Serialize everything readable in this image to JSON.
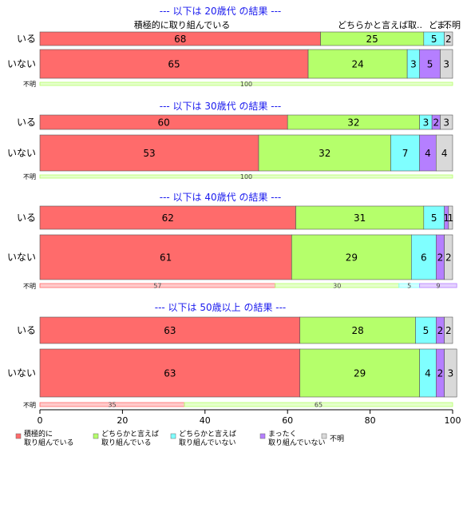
{
  "chart_data": {
    "type": "bar",
    "orientation": "horizontal",
    "stacked": true,
    "xlim": [
      0,
      100
    ],
    "x_ticks": [
      "0",
      "20",
      "40",
      "60",
      "80",
      "100"
    ],
    "legend_position": "bottom",
    "series_legend": [
      {
        "key": "active",
        "label_lines": [
          "積極的に",
          "取り組んでいる"
        ],
        "color": "#FF6B6B"
      },
      {
        "key": "somewhat_active",
        "label_lines": [
          "どちらかと言えば",
          "取り組んでいる"
        ],
        "color": "#B5FF6B"
      },
      {
        "key": "somewhat_not",
        "label_lines": [
          "どちらかと言えば",
          "取り組んでいない"
        ],
        "color": "#7FFFFF"
      },
      {
        "key": "not_at_all",
        "label_lines": [
          "まったく",
          "取り組んでいない"
        ],
        "color": "#B57FFF"
      },
      {
        "key": "unknown",
        "label_lines": [
          "不明"
        ],
        "color": "#D9D9D9"
      }
    ],
    "panels": [
      {
        "title": "--- 以下は 20歳代 の結果 ---",
        "header_labels": [
          {
            "text": "積極的に取り組んでいる",
            "series": 0
          },
          {
            "text": "どちらかと言えば取..",
            "series": 1
          },
          {
            "text": "ど..",
            "series": 2
          },
          {
            "text": "ま..",
            "series": 3
          },
          {
            "text": "不明",
            "series": 4
          }
        ],
        "rows": [
          {
            "label": "いる",
            "values": [
              68,
              25,
              5,
              0,
              2
            ],
            "labels": [
              "68",
              "25",
              "5",
              "",
              "2"
            ]
          },
          {
            "label": "いない",
            "values": [
              65,
              24,
              3,
              5,
              3
            ],
            "labels": [
              "65",
              "24",
              "3",
              "5",
              "3"
            ]
          }
        ],
        "unknown_row": {
          "label": "不明",
          "values": [
            0,
            100,
            0,
            0,
            0
          ],
          "labels": [
            "",
            "100",
            "",
            "",
            ""
          ]
        }
      },
      {
        "title": "--- 以下は 30歳代 の結果 ---",
        "rows": [
          {
            "label": "いる",
            "values": [
              60,
              32,
              3,
              2,
              3
            ],
            "labels": [
              "60",
              "32",
              "3",
              "2",
              "3"
            ]
          },
          {
            "label": "いない",
            "values": [
              53,
              32,
              7,
              4,
              4
            ],
            "labels": [
              "53",
              "32",
              "7",
              "4",
              "4"
            ]
          }
        ],
        "unknown_row": {
          "label": "不明",
          "values": [
            0,
            100,
            0,
            0,
            0
          ],
          "labels": [
            "",
            "100",
            "",
            "",
            ""
          ]
        }
      },
      {
        "title": "--- 以下は 40歳代 の結果 ---",
        "rows": [
          {
            "label": "いる",
            "values": [
              62,
              31,
              5,
              1,
              1
            ],
            "labels": [
              "62",
              "31",
              "5",
              "1",
              "1"
            ]
          },
          {
            "label": "いない",
            "values": [
              61,
              29,
              6,
              2,
              2
            ],
            "labels": [
              "61",
              "29",
              "6",
              "2",
              "2"
            ]
          }
        ],
        "unknown_row": {
          "label": "不明",
          "values": [
            57,
            30,
            5,
            9,
            0
          ],
          "labels": [
            "57",
            "30",
            "5",
            "9",
            ""
          ]
        }
      },
      {
        "title": "--- 以下は 50歳以上 の結果 ---",
        "rows": [
          {
            "label": "いる",
            "values": [
              63,
              28,
              5,
              2,
              2
            ],
            "labels": [
              "63",
              "28",
              "5",
              "2",
              "2"
            ]
          },
          {
            "label": "いない",
            "values": [
              63,
              29,
              4,
              2,
              3
            ],
            "labels": [
              "63",
              "29",
              "4",
              "2",
              "3"
            ]
          }
        ],
        "unknown_row": {
          "label": "不明",
          "values": [
            35,
            65,
            0,
            0,
            0
          ],
          "labels": [
            "35",
            "65",
            "",
            "",
            ""
          ]
        }
      }
    ]
  }
}
